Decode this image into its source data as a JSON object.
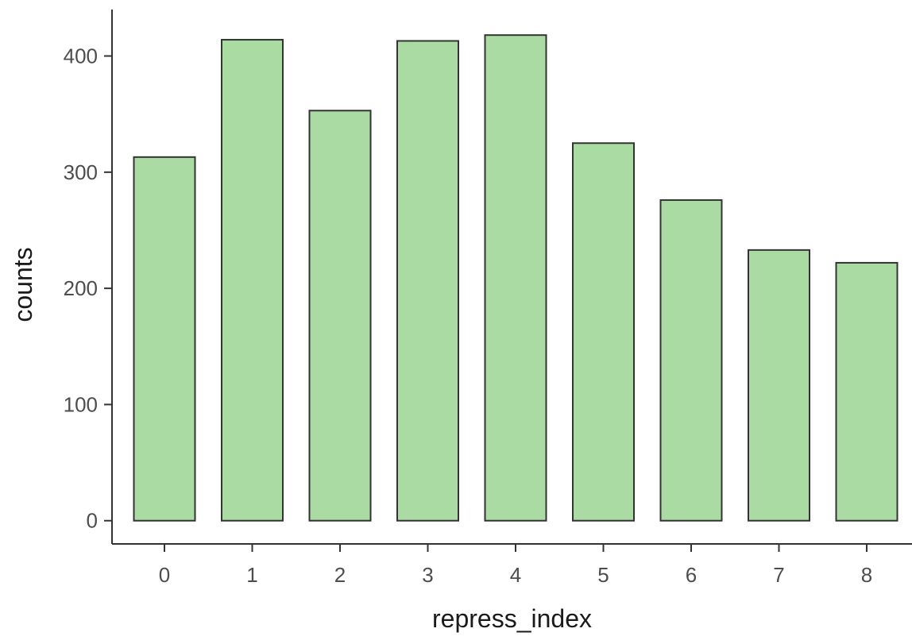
{
  "chart_data": {
    "type": "bar",
    "categories": [
      "0",
      "1",
      "2",
      "3",
      "4",
      "5",
      "6",
      "7",
      "8"
    ],
    "values": [
      313,
      414,
      353,
      413,
      418,
      325,
      276,
      233,
      222
    ],
    "title": "",
    "xlabel": "repress_index",
    "ylabel": "counts",
    "ylim": [
      -20,
      440
    ],
    "yticks": [
      0,
      100,
      200,
      300,
      400
    ],
    "grid": false,
    "legend": "none",
    "bar_fill": "#a9dba2",
    "bar_stroke": "#333333",
    "axis_color": "#333333"
  }
}
